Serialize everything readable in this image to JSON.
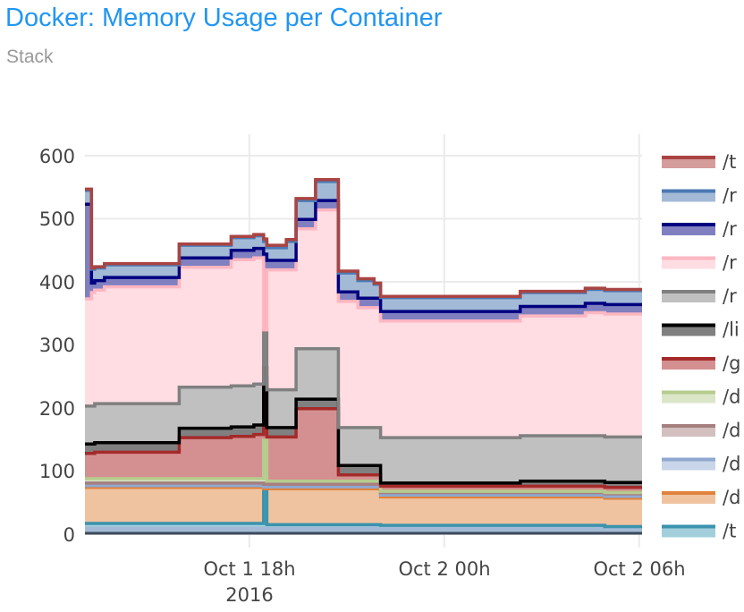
{
  "header": {
    "title": "Docker: Memory Usage per Container",
    "subtitle": "Stack"
  },
  "chart_data": {
    "type": "area",
    "stacked": true,
    "line_shape": "step",
    "title": "Docker: Memory Usage per Container",
    "subtitle": "Stack",
    "xlabel": "",
    "ylabel": "",
    "ylim": [
      0,
      600
    ],
    "yticks": [
      0,
      100,
      200,
      300,
      400,
      500,
      600
    ],
    "xticks": [
      {
        "label": "Oct 1 18h",
        "sublabel": "2016",
        "hours": 5.06
      },
      {
        "label": "Oct 2 00h",
        "sublabel": "",
        "hours": 11.06
      },
      {
        "label": "Oct 2 06h",
        "sublabel": "",
        "hours": 17.06
      }
    ],
    "x_unit": "hours since Oct 1 12:56 2016",
    "grid": true,
    "legend_position": "right",
    "x": [
      0,
      0.2,
      0.3,
      0.6,
      0.9,
      1.0,
      1.3,
      1.5,
      1.9,
      2.9,
      3.1,
      3.4,
      4.5,
      5.2,
      5.5,
      5.6,
      6.0,
      6.2,
      6.5,
      7.1,
      7.4,
      7.8,
      8.4,
      8.7,
      8.9,
      9.1,
      10.4,
      11.4,
      12.0,
      12.5,
      13.4,
      15.4,
      16.0,
      17.15
    ],
    "series": [
      {
        "name": "/t…",
        "line": "#a94442",
        "fill": "#d49c9b",
        "values": [
          2,
          2,
          2,
          2,
          2,
          2,
          2,
          2,
          2,
          2,
          2,
          2,
          2,
          2,
          4,
          4,
          4,
          3,
          3,
          3,
          3,
          3,
          3,
          3,
          2,
          2,
          2,
          2,
          2,
          2,
          2,
          2,
          2,
          2
        ]
      },
      {
        "name": "/r…",
        "line": "#4a7ab5",
        "fill": "#a3bad6",
        "values": [
          22,
          22,
          20,
          20,
          20,
          20,
          20,
          20,
          20,
          20,
          20,
          20,
          20,
          20,
          20,
          20,
          20,
          30,
          30,
          30,
          30,
          30,
          28,
          28,
          22,
          22,
          22,
          22,
          22,
          22,
          22,
          22,
          22,
          22
        ]
      },
      {
        "name": "/r…",
        "line": "#000080",
        "fill": "#8080c0",
        "values": [
          150,
          15,
          15,
          15,
          15,
          15,
          15,
          15,
          15,
          15,
          15,
          15,
          15,
          15,
          120,
          15,
          15,
          15,
          15,
          15,
          15,
          15,
          15,
          15,
          15,
          15,
          15,
          15,
          15,
          15,
          15,
          15,
          15,
          15
        ]
      },
      {
        "name": "/r…",
        "line": "#ffb6c1",
        "fill": "#ffdde3",
        "values": [
          170,
          180,
          180,
          185,
          185,
          185,
          185,
          185,
          185,
          190,
          190,
          190,
          200,
          200,
          0,
          190,
          190,
          190,
          190,
          220,
          220,
          200,
          190,
          190,
          190,
          185,
          185,
          185,
          185,
          185,
          190,
          195,
          195,
          195
        ]
      },
      {
        "name": "/r…",
        "line": "#808080",
        "fill": "#c0c0c0",
        "values": [
          60,
          60,
          62,
          62,
          62,
          62,
          62,
          62,
          62,
          65,
          65,
          65,
          65,
          65,
          60,
          60,
          60,
          60,
          80,
          80,
          80,
          60,
          60,
          60,
          60,
          72,
          72,
          72,
          72,
          72,
          72,
          72,
          72,
          72
        ]
      },
      {
        "name": "/li…",
        "line": "#000000",
        "fill": "#808080",
        "values": [
          15,
          15,
          15,
          15,
          15,
          15,
          15,
          15,
          15,
          15,
          15,
          15,
          15,
          15,
          15,
          15,
          15,
          15,
          15,
          15,
          15,
          15,
          15,
          15,
          15,
          5,
          5,
          5,
          5,
          5,
          8,
          8,
          8,
          8
        ]
      },
      {
        "name": "/g…",
        "line": "#a52a2a",
        "fill": "#d49090",
        "values": [
          40,
          40,
          42,
          42,
          42,
          42,
          42,
          42,
          42,
          65,
          65,
          65,
          67,
          70,
          100,
          70,
          70,
          70,
          115,
          115,
          115,
          10,
          10,
          10,
          10,
          8,
          8,
          8,
          8,
          8,
          8,
          8,
          8,
          8
        ]
      },
      {
        "name": "/d…",
        "line": "#b5cc8e",
        "fill": "#dbe6c8",
        "values": [
          7,
          7,
          7,
          7,
          7,
          7,
          7,
          7,
          7,
          7,
          7,
          7,
          7,
          7,
          70,
          5,
          5,
          5,
          5,
          5,
          5,
          5,
          5,
          5,
          5,
          2,
          2,
          2,
          2,
          2,
          2,
          2,
          2,
          2
        ]
      },
      {
        "name": "/d…",
        "line": "#a67f7f",
        "fill": "#d3bfbf",
        "values": [
          4,
          4,
          4,
          4,
          4,
          4,
          4,
          4,
          4,
          4,
          4,
          4,
          4,
          4,
          4,
          4,
          4,
          4,
          4,
          4,
          4,
          4,
          4,
          4,
          4,
          4,
          4,
          4,
          4,
          4,
          4,
          4,
          4,
          4
        ]
      },
      {
        "name": "/d…",
        "line": "#8fa8d0",
        "fill": "#c9d5e9",
        "values": [
          3,
          3,
          3,
          3,
          3,
          3,
          3,
          3,
          3,
          3,
          3,
          3,
          3,
          3,
          3,
          3,
          3,
          3,
          3,
          3,
          3,
          3,
          3,
          3,
          3,
          3,
          3,
          3,
          3,
          3,
          3,
          3,
          3,
          3
        ]
      },
      {
        "name": "/d…",
        "line": "#e0823d",
        "fill": "#efc39f",
        "values": [
          57,
          57,
          57,
          57,
          57,
          57,
          57,
          57,
          57,
          57,
          57,
          57,
          57,
          57,
          0,
          57,
          57,
          57,
          57,
          57,
          57,
          57,
          57,
          57,
          57,
          45,
          45,
          45,
          45,
          45,
          45,
          45,
          45,
          45
        ]
      },
      {
        "name": "/t…",
        "line": "#3b93ae",
        "fill": "#a2cfdb",
        "values": [
          17,
          17,
          17,
          17,
          17,
          17,
          17,
          17,
          17,
          17,
          17,
          17,
          17,
          17,
          72,
          15,
          15,
          15,
          15,
          15,
          15,
          15,
          15,
          15,
          15,
          14,
          14,
          14,
          14,
          14,
          14,
          14,
          12,
          12
        ]
      }
    ]
  },
  "legend": {
    "items": [
      {
        "label": "/t",
        "line": "#a94442",
        "fill": "#d49c9b"
      },
      {
        "label": "/r",
        "line": "#4a7ab5",
        "fill": "#a3bad6"
      },
      {
        "label": "/r",
        "line": "#000080",
        "fill": "#8080c0"
      },
      {
        "label": "/r",
        "line": "#ffb6c1",
        "fill": "#ffdde3"
      },
      {
        "label": "/r",
        "line": "#808080",
        "fill": "#c0c0c0"
      },
      {
        "label": "/li",
        "line": "#000000",
        "fill": "#808080"
      },
      {
        "label": "/g",
        "line": "#a52a2a",
        "fill": "#d49090"
      },
      {
        "label": "/d",
        "line": "#b5cc8e",
        "fill": "#dbe6c8"
      },
      {
        "label": "/d",
        "line": "#a67f7f",
        "fill": "#d3bfbf"
      },
      {
        "label": "/d",
        "line": "#8fa8d0",
        "fill": "#c9d5e9"
      },
      {
        "label": "/d",
        "line": "#e0823d",
        "fill": "#efc39f"
      },
      {
        "label": "/t",
        "line": "#3b93ae",
        "fill": "#a2cfdb"
      }
    ]
  },
  "axes": {
    "y_ticks": [
      "0",
      "100",
      "200",
      "300",
      "400",
      "500",
      "600"
    ],
    "x_ticks": [
      {
        "label": "Oct 1 18h",
        "sublabel": "2016"
      },
      {
        "label": "Oct 2 00h"
      },
      {
        "label": "Oct 2 06h"
      }
    ]
  },
  "base_fill": "#a3bad6",
  "base_line": "#3d4a5c"
}
